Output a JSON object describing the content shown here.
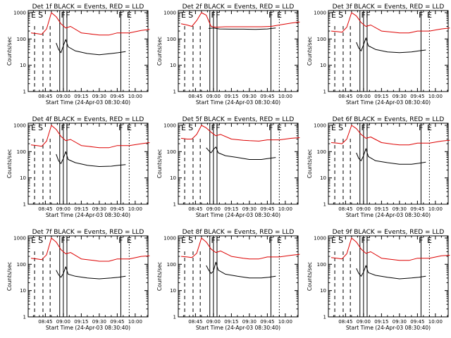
{
  "figure": {
    "colors": {
      "events": "#000000",
      "lld": "#dd0000",
      "axis": "#000000",
      "background": "#ffffff"
    }
  },
  "chart_data": [
    {
      "type": "line",
      "title": "Det 1f BLACK = Events, RED = LLD",
      "xlabel": "Start Time (24-Apr-03 08:30:40)",
      "ylabel": "Counts/sec",
      "x_tick_labels": [
        "08:45",
        "09:00",
        "09:15",
        "09:30",
        "09:45",
        "10:00"
      ],
      "y_tick_labels": [
        "1",
        "10",
        "100",
        "1000"
      ],
      "ylim": [
        1,
        1200
      ],
      "y_scale": "log",
      "marker_labels": [
        "E",
        "S",
        "F",
        "F",
        "F",
        "E"
      ],
      "grid": false,
      "series": [
        {
          "color": "#000000",
          "x": [
            "08:54",
            "08:56",
            "08:58",
            "09:00",
            "09:02",
            "09:04",
            "09:10",
            "09:20",
            "09:30",
            "09:40",
            "09:46",
            "09:52"
          ],
          "y": [
            70,
            40,
            30,
            55,
            95,
            50,
            35,
            28,
            25,
            28,
            30,
            33
          ]
        },
        {
          "color": "#dd0000",
          "x": [
            "08:33",
            "08:38",
            "08:42",
            "08:46",
            "08:50",
            "08:54",
            "08:58",
            "09:02",
            "09:06",
            "09:15",
            "09:25",
            "09:30",
            "09:38",
            "09:45",
            "09:55",
            "10:05",
            "10:12"
          ],
          "y": [
            170,
            160,
            150,
            240,
            1000,
            700,
            380,
            260,
            300,
            170,
            150,
            140,
            140,
            170,
            170,
            210,
            230
          ]
        }
      ]
    },
    {
      "type": "line",
      "title": "Det 2f BLACK = Events, RED = LLD",
      "xlabel": "Start Time (24-Apr-03 08:30:40)",
      "ylabel": "Counts/sec",
      "x_tick_labels": [
        "08:45",
        "09:00",
        "09:15",
        "09:30",
        "09:45",
        "10:00"
      ],
      "y_tick_labels": [
        "1",
        "10",
        "100",
        "1000"
      ],
      "ylim": [
        1,
        1200
      ],
      "y_scale": "log",
      "marker_labels": [
        "E",
        "S",
        "F",
        "F",
        "F",
        "E"
      ],
      "grid": false,
      "series": [
        {
          "color": "#000000",
          "x": [
            "08:56",
            "09:00",
            "09:05",
            "09:15",
            "09:25",
            "09:35",
            "09:45",
            "09:52"
          ],
          "y": [
            250,
            260,
            240,
            235,
            235,
            230,
            240,
            260
          ]
        },
        {
          "color": "#dd0000",
          "x": [
            "08:33",
            "08:38",
            "08:42",
            "08:46",
            "08:50",
            "08:54",
            "08:58",
            "09:02",
            "09:10",
            "09:20",
            "09:30",
            "09:40",
            "09:48",
            "09:55",
            "10:05",
            "10:12"
          ],
          "y": [
            380,
            340,
            300,
            500,
            1000,
            800,
            300,
            280,
            290,
            290,
            290,
            290,
            300,
            340,
            400,
            440
          ]
        }
      ]
    },
    {
      "type": "line",
      "title": "Det 3f BLACK = Events, RED = LLD",
      "xlabel": "Start Time (24-Apr-03 08:30:40)",
      "ylabel": "Counts/sec",
      "x_tick_labels": [
        "08:45",
        "09:00",
        "09:15",
        "09:30",
        "09:45",
        "10:00"
      ],
      "y_tick_labels": [
        "1",
        "10",
        "100",
        "1000"
      ],
      "ylim": [
        1,
        1200
      ],
      "y_scale": "log",
      "marker_labels": [
        "E",
        "S",
        "F",
        "F",
        "F",
        "E"
      ],
      "grid": false,
      "series": [
        {
          "color": "#000000",
          "x": [
            "08:54",
            "08:56",
            "08:58",
            "09:00",
            "09:02",
            "09:04",
            "09:10",
            "09:20",
            "09:30",
            "09:40",
            "09:46",
            "09:52"
          ],
          "y": [
            75,
            45,
            35,
            60,
            110,
            55,
            40,
            32,
            30,
            32,
            35,
            38
          ]
        },
        {
          "color": "#dd0000",
          "x": [
            "08:33",
            "08:38",
            "08:42",
            "08:46",
            "08:50",
            "08:54",
            "08:58",
            "09:02",
            "09:06",
            "09:15",
            "09:25",
            "09:30",
            "09:38",
            "09:45",
            "09:55",
            "10:05",
            "10:12"
          ],
          "y": [
            200,
            190,
            180,
            280,
            1000,
            750,
            420,
            300,
            340,
            200,
            180,
            170,
            170,
            200,
            200,
            240,
            260
          ]
        }
      ]
    },
    {
      "type": "line",
      "title": "Det 4f BLACK = Events, RED = LLD",
      "xlabel": "Start Time (24-Apr-03 08:30:40)",
      "ylabel": "Counts/sec",
      "x_tick_labels": [
        "08:45",
        "09:00",
        "09:15",
        "09:30",
        "09:45",
        "10:00"
      ],
      "y_tick_labels": [
        "1",
        "10",
        "100",
        "1000"
      ],
      "ylim": [
        1,
        1200
      ],
      "y_scale": "log",
      "marker_labels": [
        "E",
        "S",
        "F",
        "F",
        "F",
        "E"
      ],
      "grid": false,
      "series": [
        {
          "color": "#000000",
          "x": [
            "08:54",
            "08:56",
            "08:58",
            "09:00",
            "09:02",
            "09:04",
            "09:10",
            "09:20",
            "09:30",
            "09:40",
            "09:46",
            "09:52"
          ],
          "y": [
            80,
            45,
            35,
            55,
            100,
            50,
            38,
            30,
            27,
            28,
            30,
            32
          ]
        },
        {
          "color": "#dd0000",
          "x": [
            "08:33",
            "08:38",
            "08:42",
            "08:46",
            "08:50",
            "08:54",
            "08:58",
            "09:02",
            "09:06",
            "09:15",
            "09:25",
            "09:30",
            "09:38",
            "09:45",
            "09:55",
            "10:05",
            "10:12"
          ],
          "y": [
            180,
            170,
            160,
            250,
            1000,
            700,
            380,
            260,
            290,
            170,
            150,
            140,
            140,
            170,
            170,
            200,
            220
          ]
        }
      ]
    },
    {
      "type": "line",
      "title": "Det 5f BLACK = Events, RED = LLD",
      "xlabel": "Start Time (24-Apr-03 08:30:40)",
      "ylabel": "Counts/sec",
      "x_tick_labels": [
        "08:45",
        "09:00",
        "09:15",
        "09:30",
        "09:45",
        "10:00"
      ],
      "y_tick_labels": [
        "1",
        "10",
        "100",
        "1000"
      ],
      "ylim": [
        1,
        1200
      ],
      "y_scale": "log",
      "marker_labels": [
        "E",
        "S",
        "F",
        "F",
        "F",
        "E"
      ],
      "grid": false,
      "series": [
        {
          "color": "#000000",
          "x": [
            "08:54",
            "08:56",
            "08:58",
            "09:00",
            "09:02",
            "09:04",
            "09:10",
            "09:20",
            "09:30",
            "09:40",
            "09:46",
            "09:52"
          ],
          "y": [
            140,
            110,
            90,
            120,
            150,
            90,
            70,
            60,
            50,
            50,
            55,
            60
          ]
        },
        {
          "color": "#dd0000",
          "x": [
            "08:33",
            "08:38",
            "08:42",
            "08:46",
            "08:50",
            "08:54",
            "08:58",
            "09:02",
            "09:06",
            "09:15",
            "09:25",
            "09:30",
            "09:38",
            "09:45",
            "09:55",
            "10:05",
            "10:12"
          ],
          "y": [
            320,
            300,
            300,
            450,
            1000,
            800,
            550,
            400,
            450,
            300,
            270,
            260,
            250,
            280,
            280,
            320,
            340
          ]
        }
      ]
    },
    {
      "type": "line",
      "title": "Det 6f BLACK = Events, RED = LLD",
      "xlabel": "Start Time (24-Apr-03 08:30:40)",
      "ylabel": "Counts/sec",
      "x_tick_labels": [
        "08:45",
        "09:00",
        "09:15",
        "09:30",
        "09:45",
        "10:00"
      ],
      "y_tick_labels": [
        "1",
        "10",
        "100",
        "1000"
      ],
      "ylim": [
        1,
        1200
      ],
      "y_scale": "log",
      "marker_labels": [
        "E",
        "S",
        "F",
        "F",
        "F",
        "E"
      ],
      "grid": false,
      "series": [
        {
          "color": "#000000",
          "x": [
            "08:54",
            "08:56",
            "08:58",
            "09:00",
            "09:02",
            "09:04",
            "09:10",
            "09:20",
            "09:30",
            "09:40",
            "09:46",
            "09:52"
          ],
          "y": [
            90,
            55,
            45,
            70,
            130,
            65,
            45,
            38,
            33,
            33,
            36,
            40
          ]
        },
        {
          "color": "#dd0000",
          "x": [
            "08:33",
            "08:38",
            "08:42",
            "08:46",
            "08:50",
            "08:54",
            "08:58",
            "09:02",
            "09:06",
            "09:15",
            "09:25",
            "09:30",
            "09:38",
            "09:45",
            "09:55",
            "10:05",
            "10:12"
          ],
          "y": [
            220,
            210,
            200,
            300,
            1000,
            750,
            450,
            320,
            360,
            220,
            190,
            180,
            180,
            210,
            210,
            250,
            270
          ]
        }
      ]
    },
    {
      "type": "line",
      "title": "Det 7f BLACK = Events, RED = LLD",
      "xlabel": "Start Time (24-Apr-03 08:30:40)",
      "ylabel": "Counts/sec",
      "x_tick_labels": [
        "08:45",
        "09:00",
        "09:15",
        "09:30",
        "09:45",
        "10:00"
      ],
      "y_tick_labels": [
        "1",
        "10",
        "100",
        "1000"
      ],
      "ylim": [
        1,
        1200
      ],
      "y_scale": "log",
      "marker_labels": [
        "E",
        "S",
        "F",
        "F",
        "F",
        "E"
      ],
      "grid": false,
      "series": [
        {
          "color": "#000000",
          "x": [
            "08:54",
            "08:56",
            "08:58",
            "09:00",
            "09:02",
            "09:04",
            "09:10",
            "09:20",
            "09:30",
            "09:40",
            "09:46",
            "09:52"
          ],
          "y": [
            60,
            40,
            32,
            45,
            80,
            42,
            35,
            30,
            28,
            30,
            32,
            35
          ]
        },
        {
          "color": "#dd0000",
          "x": [
            "08:33",
            "08:38",
            "08:42",
            "08:46",
            "08:50",
            "08:54",
            "08:58",
            "09:02",
            "09:06",
            "09:15",
            "09:25",
            "09:30",
            "09:38",
            "09:45",
            "09:55",
            "10:05",
            "10:12"
          ],
          "y": [
            170,
            160,
            150,
            230,
            1000,
            700,
            360,
            250,
            280,
            160,
            140,
            130,
            130,
            160,
            160,
            200,
            210
          ]
        }
      ]
    },
    {
      "type": "line",
      "title": "Det 8f BLACK = Events, RED = LLD",
      "xlabel": "Start Time (24-Apr-03 08:30:40)",
      "ylabel": "Counts/sec",
      "x_tick_labels": [
        "08:45",
        "09:00",
        "09:15",
        "09:30",
        "09:45",
        "10:00"
      ],
      "y_tick_labels": [
        "1",
        "10",
        "100",
        "1000"
      ],
      "ylim": [
        1,
        1200
      ],
      "y_scale": "log",
      "marker_labels": [
        "E",
        "S",
        "F",
        "F",
        "F",
        "E"
      ],
      "grid": false,
      "series": [
        {
          "color": "#000000",
          "x": [
            "08:54",
            "08:56",
            "08:58",
            "09:00",
            "09:02",
            "09:04",
            "09:10",
            "09:20",
            "09:30",
            "09:40",
            "09:46",
            "09:52"
          ],
          "y": [
            90,
            60,
            45,
            55,
            120,
            60,
            42,
            35,
            30,
            30,
            32,
            35
          ]
        },
        {
          "color": "#dd0000",
          "x": [
            "08:33",
            "08:38",
            "08:42",
            "08:46",
            "08:50",
            "08:54",
            "08:58",
            "09:02",
            "09:06",
            "09:15",
            "09:25",
            "09:30",
            "09:38",
            "09:45",
            "09:55",
            "10:05",
            "10:12"
          ],
          "y": [
            200,
            190,
            180,
            260,
            1000,
            700,
            380,
            280,
            320,
            200,
            170,
            160,
            160,
            190,
            190,
            220,
            240
          ]
        }
      ]
    },
    {
      "type": "line",
      "title": "Det 9f BLACK = Events, RED = LLD",
      "xlabel": "Start Time (24-Apr-03 08:30:40)",
      "ylabel": "Counts/sec",
      "x_tick_labels": [
        "08:45",
        "09:00",
        "09:15",
        "09:30",
        "09:45",
        "10:00"
      ],
      "y_tick_labels": [
        "1",
        "10",
        "100",
        "1000"
      ],
      "ylim": [
        1,
        1200
      ],
      "y_scale": "log",
      "marker_labels": [
        "E",
        "S",
        "F",
        "F",
        "F",
        "E"
      ],
      "grid": false,
      "series": [
        {
          "color": "#000000",
          "x": [
            "08:54",
            "08:56",
            "08:58",
            "09:00",
            "09:02",
            "09:04",
            "09:10",
            "09:20",
            "09:30",
            "09:40",
            "09:46",
            "09:52"
          ],
          "y": [
            70,
            45,
            35,
            50,
            90,
            48,
            38,
            32,
            28,
            30,
            32,
            35
          ]
        },
        {
          "color": "#dd0000",
          "x": [
            "08:33",
            "08:38",
            "08:42",
            "08:46",
            "08:50",
            "08:54",
            "08:58",
            "09:02",
            "09:06",
            "09:15",
            "09:25",
            "09:30",
            "09:38",
            "09:45",
            "09:55",
            "10:05",
            "10:12"
          ],
          "y": [
            180,
            170,
            160,
            250,
            1000,
            700,
            380,
            260,
            300,
            170,
            150,
            140,
            140,
            170,
            170,
            210,
            220
          ]
        }
      ]
    }
  ]
}
